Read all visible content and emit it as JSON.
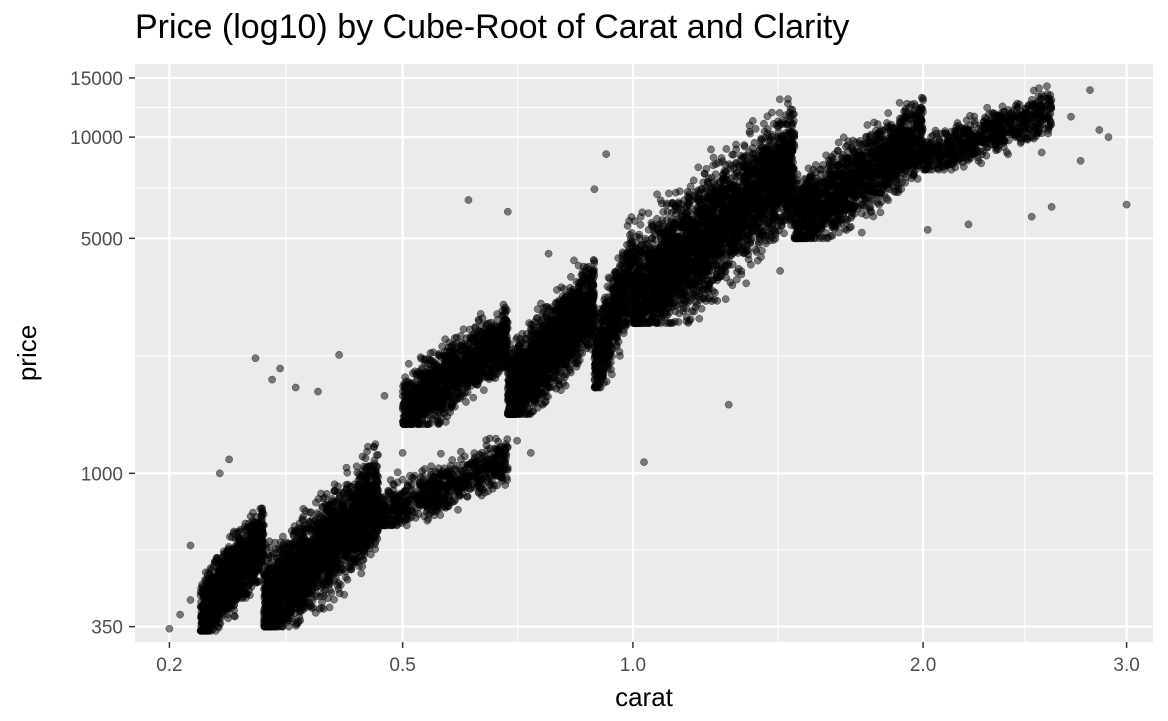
{
  "chart_data": {
    "type": "scatter",
    "title": "Price (log10) by Cube-Root of Carat and Clarity",
    "xlabel": "carat",
    "ylabel": "price",
    "x_scale": "cube-root",
    "y_scale": "log10",
    "xlim": [
      0.17,
      3.15
    ],
    "ylim": [
      315,
      16500
    ],
    "x_ticks": [
      0.2,
      0.5,
      1.0,
      2.0,
      3.0
    ],
    "x_tick_labels": [
      "0.2",
      "0.5",
      "1.0",
      "2.0",
      "3.0"
    ],
    "y_ticks": [
      350,
      1000,
      5000,
      10000,
      15000
    ],
    "y_tick_labels": [
      "350",
      "1000",
      "5000",
      "10000",
      "15000"
    ],
    "grid": true,
    "legend": "none",
    "colors": {
      "panel": "#ebebeb",
      "grid": "#ffffff",
      "point": "#000000"
    },
    "point_opacity": 0.5,
    "clusters": [
      {
        "carat_min": 0.23,
        "carat_max": 0.3,
        "price_min": 340,
        "price_max": 900,
        "n": 1200
      },
      {
        "carat_min": 0.3,
        "carat_max": 0.46,
        "price_min": 350,
        "price_max": 1350,
        "n": 2200
      },
      {
        "carat_min": 0.46,
        "carat_max": 0.7,
        "price_min": 700,
        "price_max": 1400,
        "n": 700
      },
      {
        "carat_min": 0.5,
        "carat_max": 0.7,
        "price_min": 1400,
        "price_max": 3500,
        "n": 1300
      },
      {
        "carat_min": 0.7,
        "carat_max": 0.9,
        "price_min": 1500,
        "price_max": 5000,
        "n": 1800
      },
      {
        "carat_min": 0.9,
        "carat_max": 1.0,
        "price_min": 1800,
        "price_max": 6500,
        "n": 600
      },
      {
        "carat_min": 1.0,
        "carat_max": 1.5,
        "price_min": 2800,
        "price_max": 15000,
        "n": 3000
      },
      {
        "carat_min": 1.5,
        "carat_max": 2.0,
        "price_min": 5000,
        "price_max": 15000,
        "n": 1600
      },
      {
        "carat_min": 2.0,
        "carat_max": 2.6,
        "price_min": 8000,
        "price_max": 15000,
        "n": 700
      }
    ],
    "points": [
      [
        0.2,
        345
      ],
      [
        0.21,
        380
      ],
      [
        0.22,
        420
      ],
      [
        0.22,
        610
      ],
      [
        0.24,
        500
      ],
      [
        0.25,
        1000
      ],
      [
        0.26,
        1100
      ],
      [
        0.29,
        2200
      ],
      [
        0.31,
        1900
      ],
      [
        0.32,
        2050
      ],
      [
        0.34,
        1800
      ],
      [
        0.37,
        1750
      ],
      [
        0.4,
        2250
      ],
      [
        0.47,
        1700
      ],
      [
        0.5,
        1150
      ],
      [
        0.55,
        1050
      ],
      [
        0.62,
        6500
      ],
      [
        0.7,
        6000
      ],
      [
        0.72,
        1250
      ],
      [
        0.75,
        1150
      ],
      [
        0.79,
        4500
      ],
      [
        0.85,
        4300
      ],
      [
        0.9,
        7000
      ],
      [
        0.93,
        8900
      ],
      [
        1.03,
        1080
      ],
      [
        1.1,
        6800
      ],
      [
        1.28,
        1600
      ],
      [
        1.45,
        4000
      ],
      [
        1.6,
        5500
      ],
      [
        1.75,
        5200
      ],
      [
        2.02,
        5300
      ],
      [
        2.2,
        5500
      ],
      [
        2.5,
        5800
      ],
      [
        2.55,
        9000
      ],
      [
        2.6,
        6200
      ],
      [
        2.7,
        11500
      ],
      [
        2.75,
        8500
      ],
      [
        2.8,
        13800
      ],
      [
        2.85,
        10500
      ],
      [
        2.9,
        10000
      ],
      [
        3.0,
        6300
      ]
    ]
  }
}
